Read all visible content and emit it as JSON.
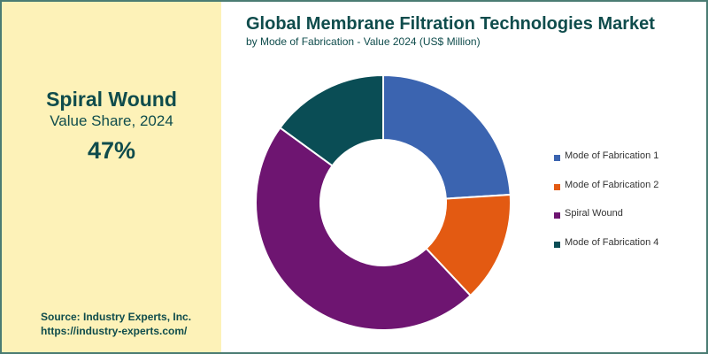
{
  "highlight": {
    "name": "Spiral Wound",
    "metric": "Value Share, 2024",
    "value": "47%"
  },
  "source": {
    "line1": "Source: Industry Experts, Inc.",
    "line2": "https://industry-experts.com/"
  },
  "colors": {
    "left_panel_bg": "#fdf2b8",
    "text_primary": "#0f4c4c",
    "border": "#4a7c73"
  },
  "chart_data": {
    "type": "pie",
    "style": "donut",
    "title": "Global Membrane Filtration Technologies Market",
    "subtitle": "by Mode of Fabrication - Value 2024 (US$ Million)",
    "categories": [
      "Mode of Fabrication 1",
      "Mode of Fabrication 2",
      "Spiral Wound",
      "Mode of Fabrication 4"
    ],
    "values": [
      24,
      14,
      47,
      15
    ],
    "colors": [
      "#3b64b0",
      "#e35a12",
      "#6e1571",
      "#0a4d55"
    ],
    "legend_position": "right"
  }
}
